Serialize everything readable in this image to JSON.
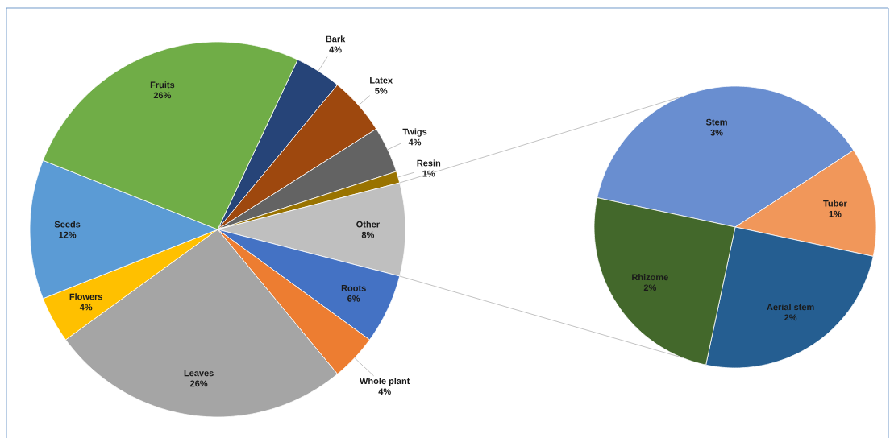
{
  "chart_data": [
    {
      "type": "pie",
      "categories": [
        "Bark",
        "Latex",
        "Twigs",
        "Resin",
        "Other",
        "Roots",
        "Whole plant",
        "Leaves",
        "Flowers",
        "Seeds",
        "Fruits"
      ],
      "values": [
        4,
        5,
        4,
        1,
        8,
        6,
        4,
        26,
        4,
        12,
        26
      ],
      "colors": [
        "#264478",
        "#9e480e",
        "#636363",
        "#997300",
        "#bfbfbf",
        "#4472c4",
        "#ed7d31",
        "#a5a5a5",
        "#ffc000",
        "#5b9bd5",
        "#70ad47"
      ],
      "value_labels": [
        "4%",
        "5%",
        "4%",
        "1%",
        "8%",
        "6%",
        "4%",
        "26%",
        "4%",
        "12%",
        "26%"
      ]
    },
    {
      "type": "pie",
      "categories": [
        "Stem",
        "Tuber",
        "Aerial stem",
        "Rhizome"
      ],
      "values": [
        3,
        1,
        2,
        2
      ],
      "colors": [
        "#698ed0",
        "#f1975a",
        "#255e91",
        "#43682b"
      ],
      "value_labels": [
        "3%",
        "1%",
        "2%",
        "2%"
      ]
    }
  ]
}
